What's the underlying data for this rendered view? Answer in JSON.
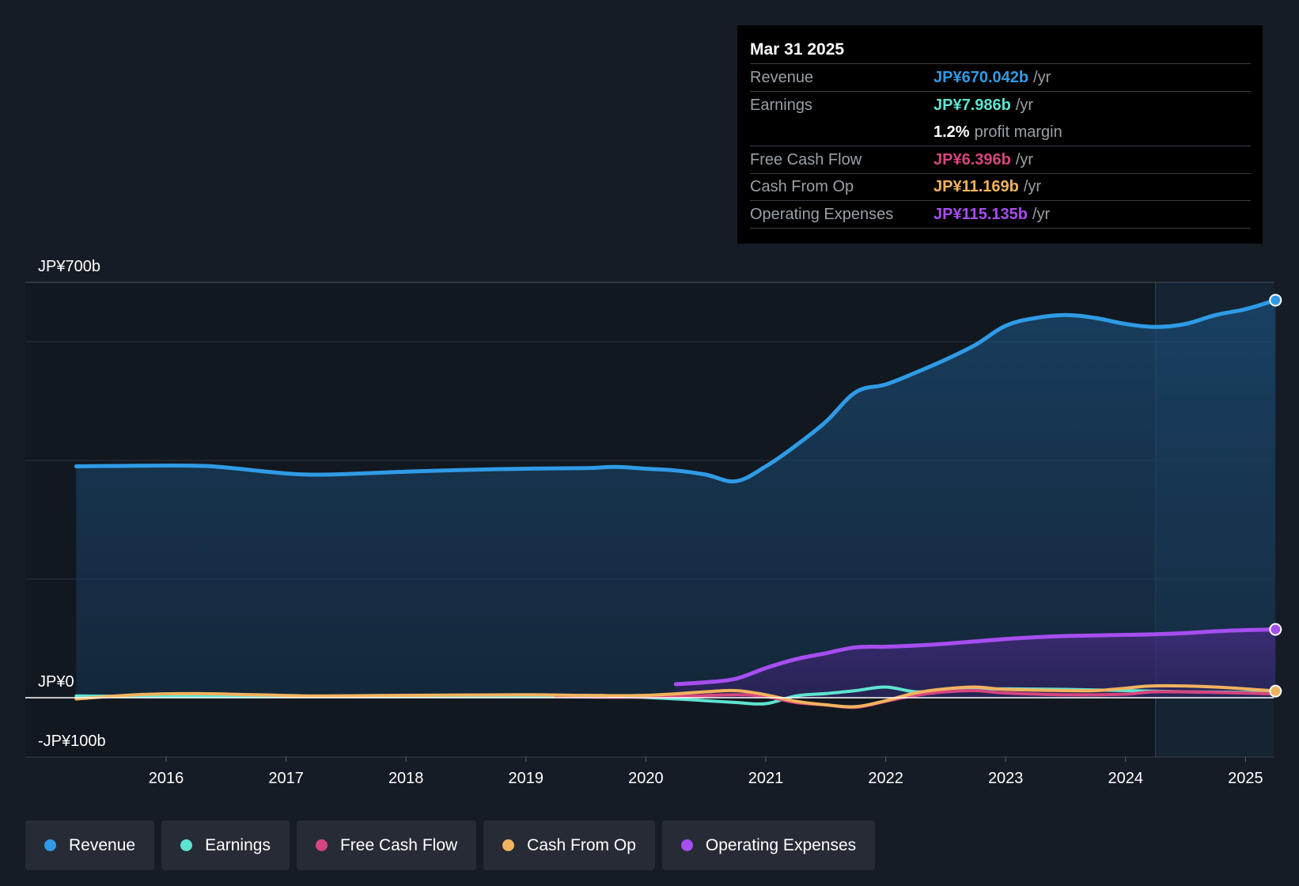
{
  "colors": {
    "revenue": "#2f9be6",
    "earnings": "#5ee3d0",
    "free_cash_flow": "#d6457f",
    "cash_from_op": "#f2b35e",
    "operating_expenses": "#a64ef0",
    "background": "#161c26",
    "grid": "#2c3440"
  },
  "tooltip": {
    "date": "Mar 31 2025",
    "rows": [
      {
        "label": "Revenue",
        "value": "JP¥670.042b",
        "unit": "/yr"
      },
      {
        "label": "Earnings",
        "value": "JP¥7.986b",
        "unit": "/yr"
      },
      {
        "label": "",
        "value": "1.2%",
        "unit": "profit margin"
      },
      {
        "label": "Free Cash Flow",
        "value": "JP¥6.396b",
        "unit": "/yr"
      },
      {
        "label": "Cash From Op",
        "value": "JP¥11.169b",
        "unit": "/yr"
      },
      {
        "label": "Operating Expenses",
        "value": "JP¥115.135b",
        "unit": "/yr"
      }
    ]
  },
  "legend": [
    {
      "label": "Revenue",
      "color_key": "revenue"
    },
    {
      "label": "Earnings",
      "color_key": "earnings"
    },
    {
      "label": "Free Cash Flow",
      "color_key": "free_cash_flow"
    },
    {
      "label": "Cash From Op",
      "color_key": "cash_from_op"
    },
    {
      "label": "Operating Expenses",
      "color_key": "operating_expenses"
    }
  ],
  "chart_data": {
    "type": "area",
    "title": "",
    "xlabel": "",
    "ylabel": "",
    "y_unit": "JP¥ billions",
    "ylim": [
      -100,
      700
    ],
    "xlim": [
      2015.25,
      2025.25
    ],
    "y_tick_labels": [
      {
        "value": 700,
        "label": "JP¥700b"
      },
      {
        "value": 0,
        "label": "JP¥0"
      },
      {
        "value": -100,
        "label": "-JP¥100b"
      }
    ],
    "y_gridlines": [
      700,
      600,
      400,
      200,
      0
    ],
    "x_ticks": [
      {
        "value": 2016,
        "label": "2016"
      },
      {
        "value": 2017,
        "label": "2017"
      },
      {
        "value": 2018,
        "label": "2018"
      },
      {
        "value": 2019,
        "label": "2019"
      },
      {
        "value": 2020,
        "label": "2020"
      },
      {
        "value": 2021,
        "label": "2021"
      },
      {
        "value": 2022,
        "label": "2022"
      },
      {
        "value": 2023,
        "label": "2023"
      },
      {
        "value": 2024,
        "label": "2024"
      },
      {
        "value": 2025,
        "label": "2025"
      }
    ],
    "highlight_start": 2024.25,
    "series": [
      {
        "name": "Revenue",
        "color_key": "revenue",
        "fill": true,
        "points": [
          [
            2015.25,
            390
          ],
          [
            2015.75,
            391
          ],
          [
            2016.25,
            391
          ],
          [
            2016.5,
            388
          ],
          [
            2017.0,
            378
          ],
          [
            2017.25,
            376
          ],
          [
            2017.5,
            377
          ],
          [
            2018.0,
            381
          ],
          [
            2018.5,
            384
          ],
          [
            2019.0,
            386
          ],
          [
            2019.5,
            387
          ],
          [
            2019.75,
            389
          ],
          [
            2020.0,
            386
          ],
          [
            2020.25,
            383
          ],
          [
            2020.5,
            376
          ],
          [
            2020.75,
            365
          ],
          [
            2021.0,
            390
          ],
          [
            2021.25,
            425
          ],
          [
            2021.5,
            465
          ],
          [
            2021.75,
            515
          ],
          [
            2022.0,
            528
          ],
          [
            2022.25,
            548
          ],
          [
            2022.5,
            570
          ],
          [
            2022.75,
            595
          ],
          [
            2023.0,
            627
          ],
          [
            2023.25,
            640
          ],
          [
            2023.5,
            645
          ],
          [
            2023.75,
            640
          ],
          [
            2024.0,
            630
          ],
          [
            2024.25,
            625
          ],
          [
            2024.5,
            630
          ],
          [
            2024.75,
            645
          ],
          [
            2025.0,
            655
          ],
          [
            2025.25,
            670.042
          ]
        ]
      },
      {
        "name": "Earnings",
        "color_key": "earnings",
        "fill": false,
        "points": [
          [
            2015.25,
            3
          ],
          [
            2016.0,
            2
          ],
          [
            2017.0,
            2
          ],
          [
            2018.0,
            2
          ],
          [
            2019.0,
            2
          ],
          [
            2019.75,
            2
          ],
          [
            2020.25,
            -2
          ],
          [
            2020.5,
            -5
          ],
          [
            2020.75,
            -8
          ],
          [
            2021.0,
            -10
          ],
          [
            2021.25,
            3
          ],
          [
            2021.5,
            7
          ],
          [
            2021.75,
            12
          ],
          [
            2022.0,
            18
          ],
          [
            2022.25,
            10
          ],
          [
            2022.5,
            12
          ],
          [
            2022.75,
            14
          ],
          [
            2023.0,
            15
          ],
          [
            2023.5,
            14
          ],
          [
            2024.0,
            12
          ],
          [
            2024.5,
            10
          ],
          [
            2025.0,
            9
          ],
          [
            2025.25,
            7.986
          ]
        ]
      },
      {
        "name": "Free Cash Flow",
        "color_key": "free_cash_flow",
        "fill": false,
        "points": [
          [
            2019.25,
            2
          ],
          [
            2019.75,
            1
          ],
          [
            2020.25,
            2
          ],
          [
            2020.75,
            5
          ],
          [
            2021.0,
            2
          ],
          [
            2021.25,
            -8
          ],
          [
            2021.5,
            -12
          ],
          [
            2021.75,
            -16
          ],
          [
            2022.0,
            -6
          ],
          [
            2022.25,
            4
          ],
          [
            2022.5,
            10
          ],
          [
            2022.75,
            12
          ],
          [
            2023.0,
            8
          ],
          [
            2023.5,
            5
          ],
          [
            2024.0,
            6
          ],
          [
            2024.25,
            10
          ],
          [
            2024.75,
            9
          ],
          [
            2025.25,
            6.396
          ]
        ]
      },
      {
        "name": "Cash From Op",
        "color_key": "cash_from_op",
        "fill": false,
        "points": [
          [
            2015.25,
            -2
          ],
          [
            2015.75,
            5
          ],
          [
            2016.25,
            7
          ],
          [
            2016.75,
            5
          ],
          [
            2017.25,
            3
          ],
          [
            2018.0,
            4
          ],
          [
            2019.0,
            5
          ],
          [
            2019.5,
            4
          ],
          [
            2020.0,
            4
          ],
          [
            2020.5,
            10
          ],
          [
            2020.75,
            12
          ],
          [
            2021.0,
            5
          ],
          [
            2021.25,
            -6
          ],
          [
            2021.5,
            -12
          ],
          [
            2021.75,
            -15
          ],
          [
            2022.0,
            -5
          ],
          [
            2022.25,
            8
          ],
          [
            2022.5,
            15
          ],
          [
            2022.75,
            18
          ],
          [
            2023.0,
            14
          ],
          [
            2023.5,
            12
          ],
          [
            2023.75,
            12
          ],
          [
            2024.0,
            16
          ],
          [
            2024.25,
            20
          ],
          [
            2024.75,
            18
          ],
          [
            2025.25,
            11.169
          ]
        ]
      },
      {
        "name": "Operating Expenses",
        "color_key": "operating_expenses",
        "fill": true,
        "points": [
          [
            2020.25,
            23
          ],
          [
            2020.5,
            26
          ],
          [
            2020.75,
            32
          ],
          [
            2021.0,
            50
          ],
          [
            2021.25,
            65
          ],
          [
            2021.5,
            75
          ],
          [
            2021.75,
            85
          ],
          [
            2022.0,
            86
          ],
          [
            2022.25,
            88
          ],
          [
            2022.5,
            91
          ],
          [
            2022.75,
            95
          ],
          [
            2023.0,
            99
          ],
          [
            2023.25,
            102
          ],
          [
            2023.5,
            104
          ],
          [
            2023.75,
            105
          ],
          [
            2024.0,
            106
          ],
          [
            2024.25,
            107
          ],
          [
            2024.5,
            109
          ],
          [
            2024.75,
            112
          ],
          [
            2025.0,
            114
          ],
          [
            2025.25,
            115.135
          ]
        ]
      }
    ]
  }
}
